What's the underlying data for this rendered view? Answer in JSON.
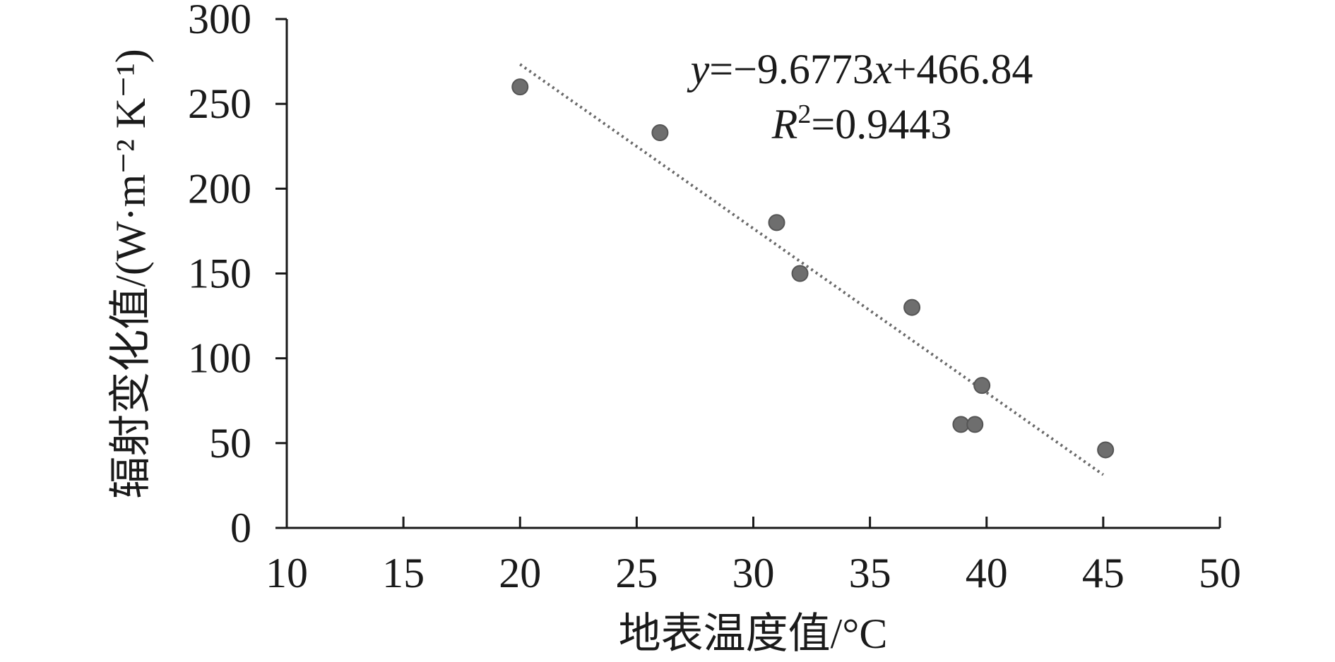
{
  "chart_data": {
    "type": "scatter",
    "xlabel": "地表温度值/°C",
    "ylabel": "辐射变化值/(W·m⁻² K⁻¹)",
    "xlim": [
      10,
      50
    ],
    "ylim": [
      0,
      300
    ],
    "x_ticks": [
      "10",
      "15",
      "20",
      "25",
      "30",
      "35",
      "40",
      "45",
      "50"
    ],
    "y_ticks": [
      "0",
      "50",
      "100",
      "150",
      "200",
      "250",
      "300"
    ],
    "points": [
      {
        "x": 20,
        "y": 260
      },
      {
        "x": 26,
        "y": 233
      },
      {
        "x": 31,
        "y": 180
      },
      {
        "x": 32,
        "y": 150
      },
      {
        "x": 36.8,
        "y": 130
      },
      {
        "x": 39.8,
        "y": 84
      },
      {
        "x": 38.9,
        "y": 61
      },
      {
        "x": 39.5,
        "y": 61
      },
      {
        "x": 45.1,
        "y": 46
      }
    ],
    "trendline": {
      "slope": -9.6773,
      "intercept": 466.84,
      "x_range": [
        20,
        45
      ],
      "equation_label": "y=−9.6773x+466.84",
      "r2_label": "R²=0.9443"
    },
    "grid": false,
    "legend": "none",
    "colors": {
      "point": "#6e6e6e",
      "trendline": "#6a6a6a",
      "axis": "#1a1a1a"
    }
  }
}
